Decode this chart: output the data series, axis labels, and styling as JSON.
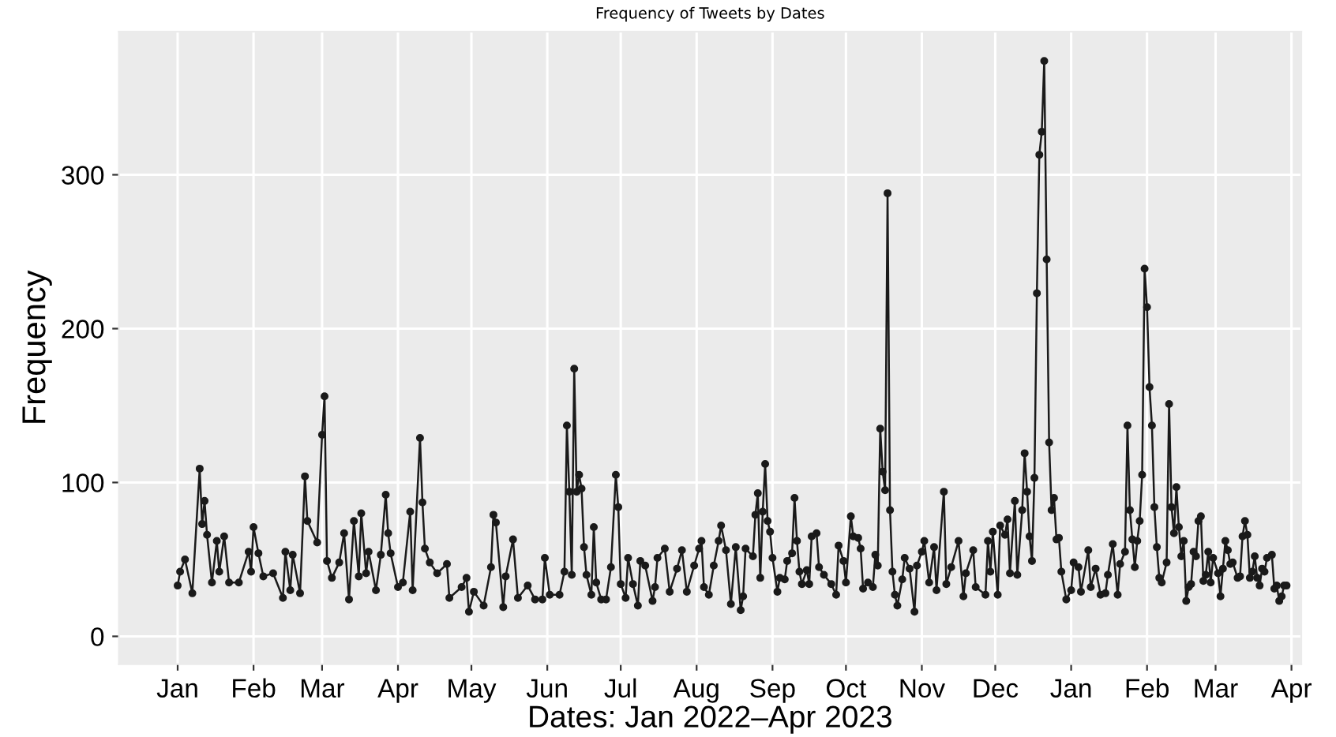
{
  "chart_data": {
    "type": "line",
    "title": "Frequency of Tweets by Dates",
    "xlabel": "Dates: Jan 2022–Apr 2023",
    "ylabel": "Frequency",
    "x": [
      "2022-01-01",
      "2022-01-02",
      "2022-01-04",
      "2022-01-07",
      "2022-01-10",
      "2022-01-11",
      "2022-01-12",
      "2022-01-13",
      "2022-01-15",
      "2022-01-17",
      "2022-01-18",
      "2022-01-20",
      "2022-01-22",
      "2022-01-26",
      "2022-01-30",
      "2022-01-31",
      "2022-02-01",
      "2022-02-03",
      "2022-02-05",
      "2022-02-09",
      "2022-02-13",
      "2022-02-14",
      "2022-02-16",
      "2022-02-17",
      "2022-02-20",
      "2022-02-22",
      "2022-02-23",
      "2022-02-27",
      "2022-03-01",
      "2022-03-02",
      "2022-03-03",
      "2022-03-05",
      "2022-03-08",
      "2022-03-10",
      "2022-03-12",
      "2022-03-14",
      "2022-03-16",
      "2022-03-17",
      "2022-03-19",
      "2022-03-20",
      "2022-03-23",
      "2022-03-25",
      "2022-03-27",
      "2022-03-28",
      "2022-03-29",
      "2022-04-01",
      "2022-04-03",
      "2022-04-06",
      "2022-04-07",
      "2022-04-10",
      "2022-04-11",
      "2022-04-12",
      "2022-04-14",
      "2022-04-17",
      "2022-04-21",
      "2022-04-22",
      "2022-04-27",
      "2022-04-29",
      "2022-04-30",
      "2022-05-02",
      "2022-05-06",
      "2022-05-09",
      "2022-05-10",
      "2022-05-11",
      "2022-05-14",
      "2022-05-15",
      "2022-05-18",
      "2022-05-20",
      "2022-05-24",
      "2022-05-27",
      "2022-05-30",
      "2022-05-31",
      "2022-06-02",
      "2022-06-06",
      "2022-06-08",
      "2022-06-09",
      "2022-06-10",
      "2022-06-11",
      "2022-06-12",
      "2022-06-13",
      "2022-06-14",
      "2022-06-15",
      "2022-06-16",
      "2022-06-17",
      "2022-06-19",
      "2022-06-20",
      "2022-06-21",
      "2022-06-23",
      "2022-06-25",
      "2022-06-27",
      "2022-06-29",
      "2022-06-30",
      "2022-07-01",
      "2022-07-03",
      "2022-07-04",
      "2022-07-06",
      "2022-07-08",
      "2022-07-09",
      "2022-07-11",
      "2022-07-14",
      "2022-07-15",
      "2022-07-16",
      "2022-07-19",
      "2022-07-21",
      "2022-07-24",
      "2022-07-26",
      "2022-07-28",
      "2022-07-31",
      "2022-08-02",
      "2022-08-03",
      "2022-08-04",
      "2022-08-06",
      "2022-08-08",
      "2022-08-10",
      "2022-08-11",
      "2022-08-13",
      "2022-08-15",
      "2022-08-17",
      "2022-08-19",
      "2022-08-20",
      "2022-08-21",
      "2022-08-24",
      "2022-08-25",
      "2022-08-26",
      "2022-08-27",
      "2022-08-28",
      "2022-08-29",
      "2022-08-30",
      "2022-08-31",
      "2022-09-01",
      "2022-09-03",
      "2022-09-04",
      "2022-09-06",
      "2022-09-07",
      "2022-09-09",
      "2022-09-10",
      "2022-09-11",
      "2022-09-12",
      "2022-09-13",
      "2022-09-15",
      "2022-09-16",
      "2022-09-17",
      "2022-09-19",
      "2022-09-20",
      "2022-09-22",
      "2022-09-25",
      "2022-09-27",
      "2022-09-28",
      "2022-09-30",
      "2022-10-01",
      "2022-10-03",
      "2022-10-04",
      "2022-10-06",
      "2022-10-07",
      "2022-10-08",
      "2022-10-10",
      "2022-10-12",
      "2022-10-13",
      "2022-10-14",
      "2022-10-15",
      "2022-10-16",
      "2022-10-17",
      "2022-10-18",
      "2022-10-19",
      "2022-10-20",
      "2022-10-21",
      "2022-10-22",
      "2022-10-24",
      "2022-10-25",
      "2022-10-27",
      "2022-10-29",
      "2022-10-30",
      "2022-11-01",
      "2022-11-02",
      "2022-11-04",
      "2022-11-06",
      "2022-11-07",
      "2022-11-10",
      "2022-11-11",
      "2022-11-13",
      "2022-11-16",
      "2022-11-18",
      "2022-11-19",
      "2022-11-22",
      "2022-11-23",
      "2022-11-27",
      "2022-11-28",
      "2022-11-29",
      "2022-11-30",
      "2022-12-02",
      "2022-12-03",
      "2022-12-05",
      "2022-12-06",
      "2022-12-07",
      "2022-12-09",
      "2022-12-10",
      "2022-12-12",
      "2022-12-13",
      "2022-12-14",
      "2022-12-15",
      "2022-12-16",
      "2022-12-17",
      "2022-12-18",
      "2022-12-19",
      "2022-12-20",
      "2022-12-21",
      "2022-12-22",
      "2022-12-23",
      "2022-12-24",
      "2022-12-25",
      "2022-12-26",
      "2022-12-27",
      "2022-12-28",
      "2022-12-30",
      "2023-01-01",
      "2023-01-02",
      "2023-01-04",
      "2023-01-05",
      "2023-01-08",
      "2023-01-09",
      "2023-01-11",
      "2023-01-13",
      "2023-01-15",
      "2023-01-16",
      "2023-01-18",
      "2023-01-20",
      "2023-01-21",
      "2023-01-23",
      "2023-01-24",
      "2023-01-25",
      "2023-01-26",
      "2023-01-27",
      "2023-01-28",
      "2023-01-29",
      "2023-01-30",
      "2023-01-31",
      "2023-02-01",
      "2023-02-02",
      "2023-02-03",
      "2023-02-04",
      "2023-02-05",
      "2023-02-06",
      "2023-02-07",
      "2023-02-09",
      "2023-02-10",
      "2023-02-11",
      "2023-02-12",
      "2023-02-13",
      "2023-02-14",
      "2023-02-15",
      "2023-02-16",
      "2023-02-17",
      "2023-02-18",
      "2023-02-19",
      "2023-02-20",
      "2023-02-21",
      "2023-02-22",
      "2023-02-23",
      "2023-02-24",
      "2023-02-25",
      "2023-02-26",
      "2023-02-27",
      "2023-02-28",
      "2023-03-02",
      "2023-03-03",
      "2023-03-04",
      "2023-03-05",
      "2023-03-06",
      "2023-03-07",
      "2023-03-08",
      "2023-03-10",
      "2023-03-11",
      "2023-03-12",
      "2023-03-13",
      "2023-03-14",
      "2023-03-15",
      "2023-03-16",
      "2023-03-17",
      "2023-03-18",
      "2023-03-19",
      "2023-03-20",
      "2023-03-21",
      "2023-03-22",
      "2023-03-24",
      "2023-03-25",
      "2023-03-26",
      "2023-03-27",
      "2023-03-28",
      "2023-03-29",
      "2023-03-30"
    ],
    "series": [
      {
        "color": "#1a1a1a",
        "values": [
          33,
          42,
          50,
          28,
          109,
          73,
          88,
          66,
          35,
          62,
          42,
          65,
          35,
          35,
          55,
          42,
          71,
          54,
          39,
          41,
          25,
          55,
          30,
          53,
          28,
          104,
          75,
          61,
          131,
          156,
          49,
          38,
          48,
          67,
          24,
          75,
          39,
          80,
          41,
          55,
          30,
          53,
          92,
          67,
          54,
          32,
          35,
          81,
          30,
          129,
          87,
          57,
          48,
          41,
          47,
          25,
          32,
          38,
          16,
          29,
          20,
          45,
          79,
          74,
          19,
          39,
          63,
          25,
          33,
          24,
          24,
          51,
          27,
          27,
          42,
          137,
          94,
          40,
          174,
          94,
          105,
          96,
          58,
          40,
          27,
          71,
          35,
          24,
          24,
          45,
          105,
          84,
          34,
          25,
          51,
          34,
          20,
          49,
          46,
          23,
          32,
          51,
          57,
          29,
          44,
          56,
          29,
          46,
          57,
          62,
          32,
          27,
          46,
          62,
          72,
          56,
          21,
          58,
          17,
          26,
          57,
          52,
          79,
          93,
          38,
          81,
          112,
          75,
          68,
          51,
          29,
          38,
          37,
          49,
          54,
          90,
          62,
          42,
          34,
          43,
          34,
          65,
          67,
          45,
          40,
          34,
          27,
          59,
          49,
          35,
          78,
          65,
          64,
          57,
          31,
          35,
          32,
          53,
          46,
          135,
          107,
          95,
          288,
          82,
          42,
          27,
          20,
          37,
          51,
          44,
          16,
          46,
          55,
          62,
          35,
          58,
          30,
          94,
          34,
          45,
          62,
          26,
          41,
          56,
          32,
          27,
          62,
          42,
          68,
          27,
          72,
          66,
          76,
          41,
          88,
          40,
          82,
          119,
          94,
          65,
          49,
          103,
          223,
          313,
          328,
          374,
          245,
          126,
          82,
          90,
          63,
          64,
          42,
          24,
          30,
          48,
          45,
          29,
          56,
          32,
          44,
          27,
          28,
          40,
          60,
          27,
          47,
          55,
          137,
          82,
          63,
          45,
          62,
          75,
          105,
          239,
          214,
          162,
          137,
          84,
          58,
          38,
          35,
          48,
          151,
          84,
          67,
          97,
          71,
          52,
          62,
          23,
          32,
          34,
          55,
          52,
          75,
          78,
          36,
          40,
          55,
          35,
          51,
          41,
          26,
          44,
          62,
          56,
          47,
          48,
          38,
          39,
          65,
          75,
          66,
          38,
          42,
          52,
          38,
          33,
          44,
          42,
          51,
          53,
          31,
          33,
          23,
          26,
          33,
          33
        ]
      }
    ],
    "xlim": [
      "2021-12-08",
      "2023-04-05"
    ],
    "ylim": [
      -18,
      393
    ],
    "xticks": [
      {
        "value": "2022-01-01",
        "label": "Jan"
      },
      {
        "value": "2022-02-01",
        "label": "Feb"
      },
      {
        "value": "2022-03-01",
        "label": "Mar"
      },
      {
        "value": "2022-04-01",
        "label": "Apr"
      },
      {
        "value": "2022-05-01",
        "label": "May"
      },
      {
        "value": "2022-06-01",
        "label": "Jun"
      },
      {
        "value": "2022-07-01",
        "label": "Jul"
      },
      {
        "value": "2022-08-01",
        "label": "Aug"
      },
      {
        "value": "2022-09-01",
        "label": "Sep"
      },
      {
        "value": "2022-10-01",
        "label": "Oct"
      },
      {
        "value": "2022-11-01",
        "label": "Nov"
      },
      {
        "value": "2022-12-01",
        "label": "Dec"
      },
      {
        "value": "2023-01-01",
        "label": "Jan"
      },
      {
        "value": "2023-02-01",
        "label": "Feb"
      },
      {
        "value": "2023-03-01",
        "label": "Mar"
      },
      {
        "value": "2023-04-01",
        "label": "Apr"
      }
    ],
    "yticks": [
      0,
      100,
      200,
      300
    ],
    "grid": true,
    "marker": "circle",
    "line_style": "solid",
    "legend": false
  }
}
